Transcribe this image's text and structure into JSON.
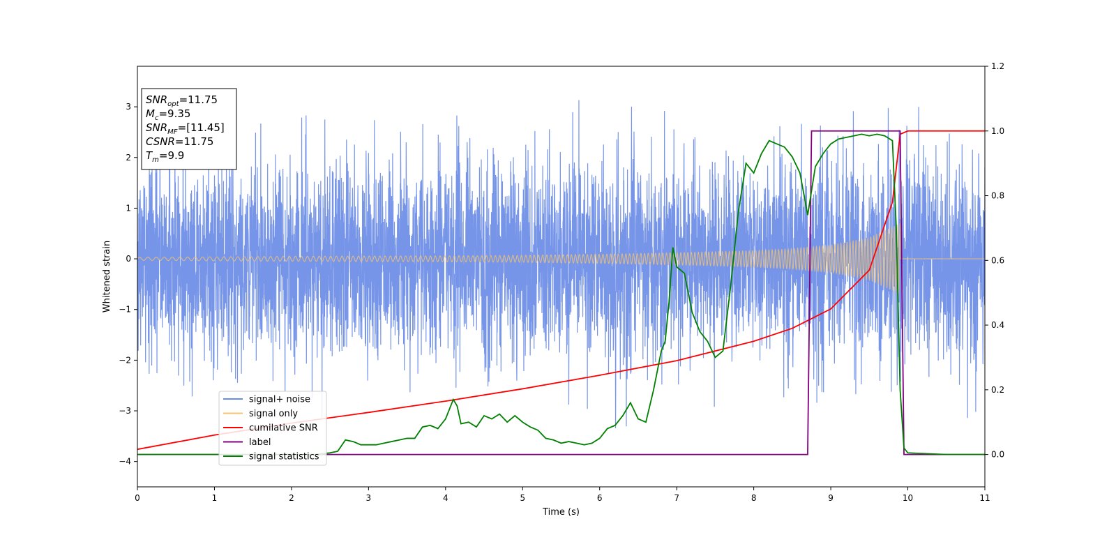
{
  "chart_data": {
    "type": "line",
    "xlabel": "Time (s)",
    "ylabel": "Whitened strain",
    "xlim": [
      0,
      11
    ],
    "ylim_left": [
      -4.5,
      3.8
    ],
    "ylim_right": [
      -0.1,
      1.2
    ],
    "x_ticks": [
      0,
      1,
      2,
      3,
      4,
      5,
      6,
      7,
      8,
      9,
      10,
      11
    ],
    "y_ticks_left": [
      3,
      2,
      1,
      0,
      -1,
      -2,
      -3,
      -4
    ],
    "y_ticks_right": [
      1.2,
      1.0,
      0.8,
      0.6,
      0.4,
      0.2,
      0.0
    ],
    "y_tick_labels_left": [
      "3",
      "2",
      "1",
      "0",
      "−1",
      "−2",
      "−3",
      "−4"
    ],
    "y_tick_labels_right": [
      "1.2",
      "1.0",
      "0.8",
      "0.6",
      "0.4",
      "0.2",
      "0.0"
    ],
    "grid": false,
    "legend_placement": "lower-left",
    "annotation": {
      "lines": [
        {
          "name": "SNR",
          "sub": "opt",
          "value": "=11.75"
        },
        {
          "name": "M",
          "sub": "c",
          "value": "=9.35"
        },
        {
          "name": "SNR",
          "sub": "MF",
          "value": "=[11.45]"
        },
        {
          "name": "CSNR",
          "sub": "",
          "value": "=11.75"
        },
        {
          "name": "T",
          "sub": "m",
          "value": "=9.9"
        }
      ]
    },
    "series": [
      {
        "name": "signal+ noise",
        "axis": "left",
        "color": "#6a8ce6",
        "noise_std": 0.95,
        "noise_max": 3.4
      },
      {
        "name": "signal only",
        "axis": "left",
        "color": "#f5c36e",
        "envelope": {
          "x": [
            0,
            2,
            4,
            5,
            6,
            7,
            8,
            8.5,
            9,
            9.5,
            9.9
          ],
          "amp": [
            0.03,
            0.05,
            0.06,
            0.07,
            0.09,
            0.12,
            0.16,
            0.2,
            0.27,
            0.42,
            0.7
          ]
        },
        "end_x": 9.9
      },
      {
        "name": "cumilative SNR",
        "axis": "right",
        "color": "#ff0000",
        "x": [
          0,
          1,
          2,
          3,
          4,
          5,
          6,
          7,
          8,
          8.5,
          9,
          9.5,
          9.8,
          9.9,
          10,
          11
        ],
        "values": [
          0.016,
          0.06,
          0.097,
          0.13,
          0.165,
          0.203,
          0.245,
          0.29,
          0.35,
          0.39,
          0.45,
          0.57,
          0.78,
          0.99,
          1.0,
          1.0
        ]
      },
      {
        "name": "label",
        "axis": "right",
        "color": "#800080",
        "x": [
          0,
          8.7,
          8.75,
          9.9,
          9.95,
          11
        ],
        "values": [
          0,
          0,
          1,
          1,
          0,
          0
        ]
      },
      {
        "name": "signal statistics",
        "axis": "right",
        "color": "#008000",
        "x": [
          0,
          0.5,
          1,
          1.5,
          2,
          2.3,
          2.5,
          2.6,
          2.7,
          2.8,
          2.9,
          3.0,
          3.1,
          3.2,
          3.3,
          3.4,
          3.5,
          3.6,
          3.7,
          3.8,
          3.9,
          4.0,
          4.1,
          4.15,
          4.2,
          4.3,
          4.4,
          4.5,
          4.6,
          4.7,
          4.8,
          4.9,
          5.0,
          5.1,
          5.2,
          5.3,
          5.4,
          5.5,
          5.6,
          5.7,
          5.8,
          5.9,
          6.0,
          6.1,
          6.2,
          6.3,
          6.4,
          6.5,
          6.6,
          6.7,
          6.8,
          6.85,
          6.9,
          6.95,
          7.0,
          7.1,
          7.2,
          7.3,
          7.4,
          7.5,
          7.6,
          7.7,
          7.8,
          7.9,
          8.0,
          8.1,
          8.2,
          8.3,
          8.4,
          8.5,
          8.6,
          8.7,
          8.8,
          8.9,
          9.0,
          9.1,
          9.2,
          9.3,
          9.4,
          9.5,
          9.6,
          9.7,
          9.8,
          9.85,
          9.9,
          9.95,
          10.0,
          10.5,
          11
        ],
        "values": [
          0.0,
          0.0,
          0.0,
          0.0,
          0.0,
          0.0,
          0.005,
          0.01,
          0.045,
          0.04,
          0.03,
          0.03,
          0.03,
          0.035,
          0.04,
          0.045,
          0.05,
          0.05,
          0.085,
          0.09,
          0.08,
          0.11,
          0.17,
          0.15,
          0.095,
          0.1,
          0.085,
          0.12,
          0.11,
          0.125,
          0.1,
          0.12,
          0.1,
          0.085,
          0.075,
          0.05,
          0.045,
          0.035,
          0.04,
          0.035,
          0.03,
          0.035,
          0.05,
          0.08,
          0.09,
          0.12,
          0.16,
          0.11,
          0.1,
          0.2,
          0.32,
          0.35,
          0.47,
          0.64,
          0.58,
          0.56,
          0.44,
          0.38,
          0.35,
          0.3,
          0.32,
          0.52,
          0.75,
          0.9,
          0.87,
          0.93,
          0.97,
          0.96,
          0.95,
          0.92,
          0.87,
          0.74,
          0.89,
          0.93,
          0.96,
          0.975,
          0.98,
          0.985,
          0.99,
          0.985,
          0.99,
          0.985,
          0.97,
          0.7,
          0.2,
          0.02,
          0.005,
          0.0,
          0.0
        ]
      }
    ]
  }
}
